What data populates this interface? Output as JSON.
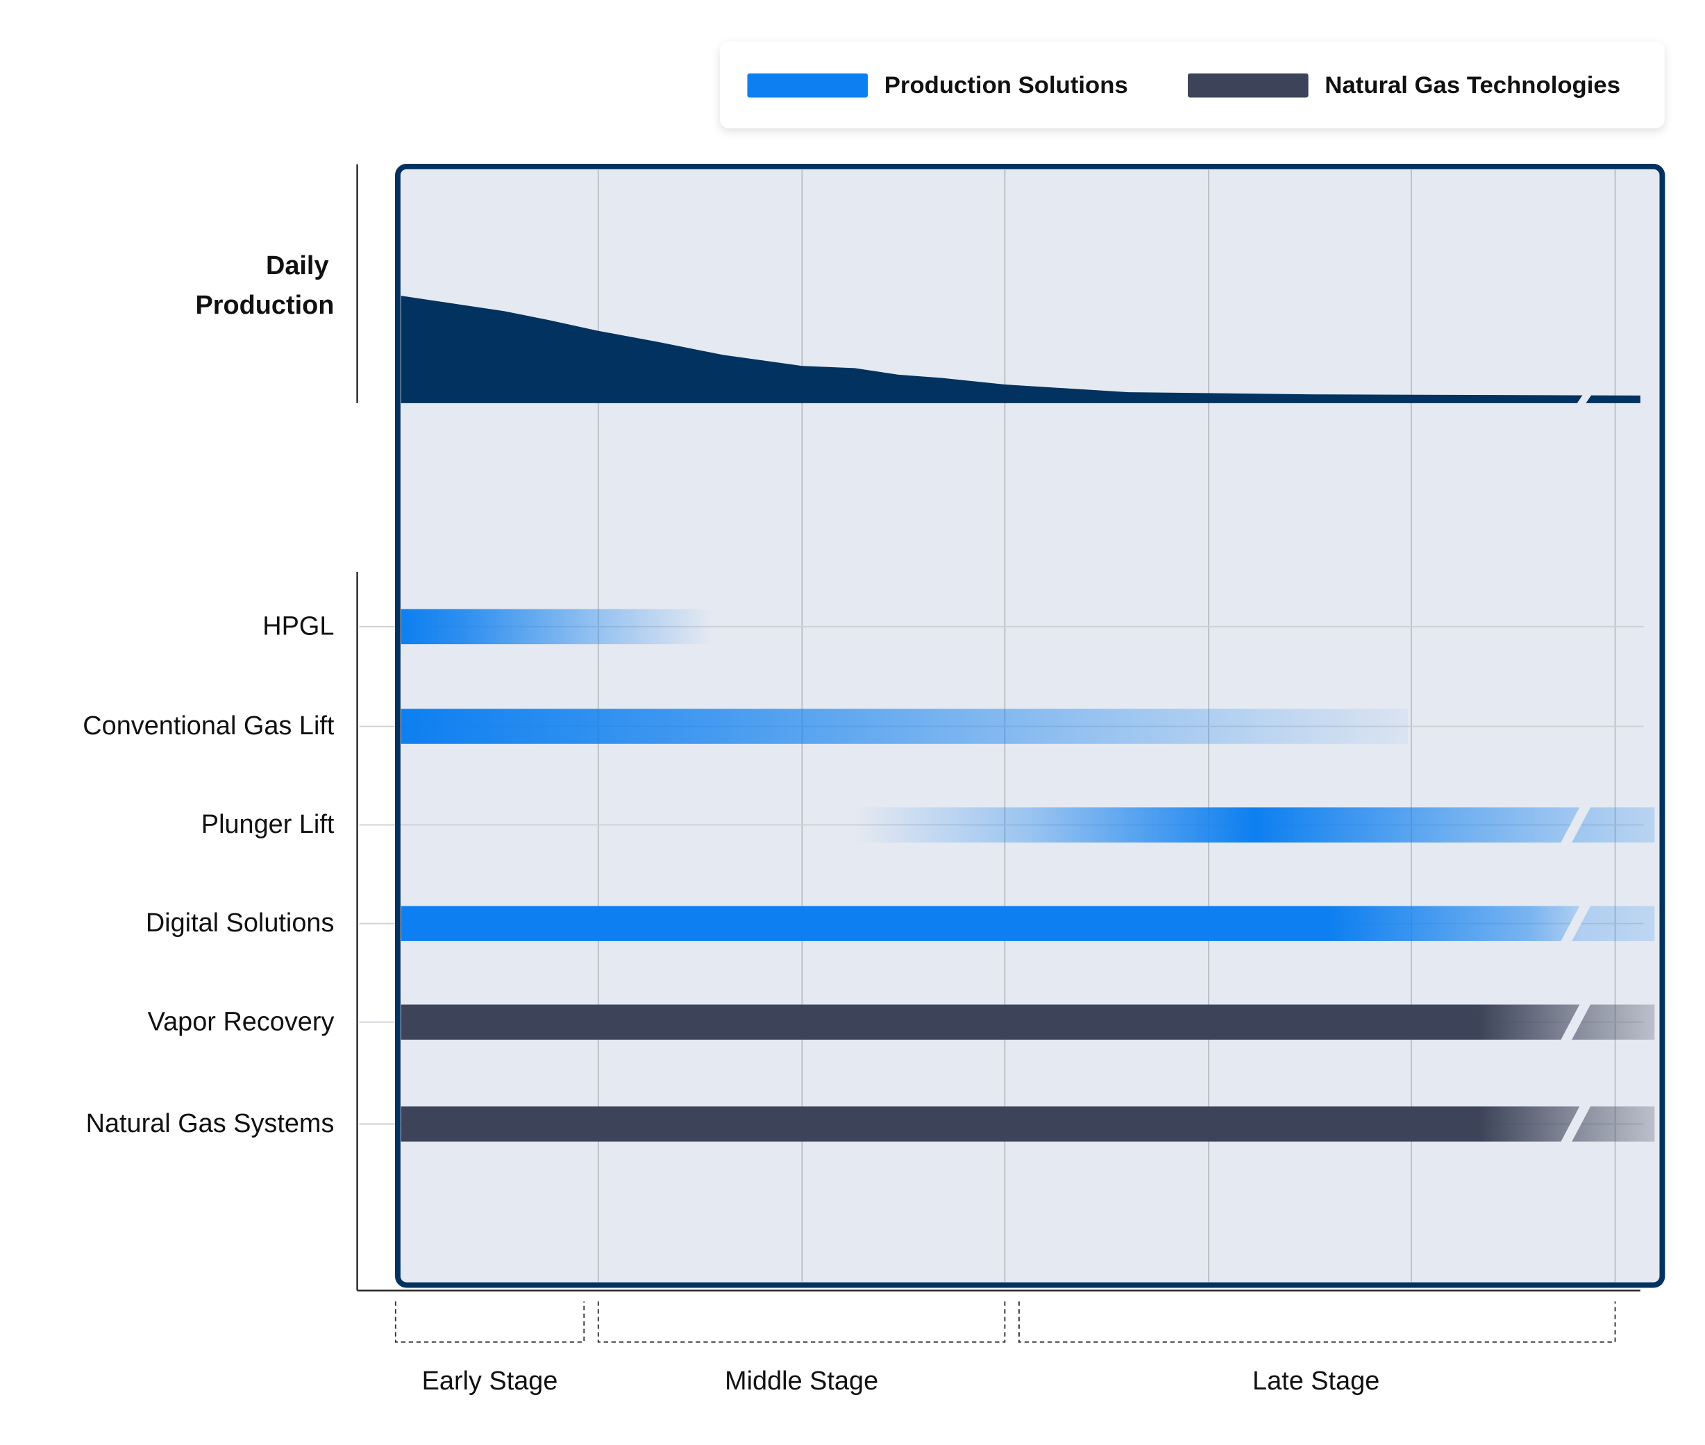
{
  "legend": {
    "items": [
      {
        "label": "Production Solutions",
        "color": "#0d7ff0"
      },
      {
        "label": "Natural Gas Technologies",
        "color": "#3d4459"
      }
    ]
  },
  "production": {
    "label_lines": [
      "Daily",
      "Production"
    ],
    "color": "#02325f"
  },
  "rows": [
    {
      "label": "HPGL",
      "color": "#0d7ff0"
    },
    {
      "label": "Conventional Gas Lift",
      "color": "#0d7ff0"
    },
    {
      "label": "Plunger Lift",
      "color": "#0d7ff0"
    },
    {
      "label": "Digital Solutions",
      "color": "#0d7ff0"
    },
    {
      "label": "Vapor Recovery",
      "color": "#3d4459"
    },
    {
      "label": "Natural Gas Systems",
      "color": "#3d4459"
    }
  ],
  "stages": [
    {
      "label": "Early Stage"
    },
    {
      "label": "Middle Stage"
    },
    {
      "label": "Late Stage"
    }
  ]
}
